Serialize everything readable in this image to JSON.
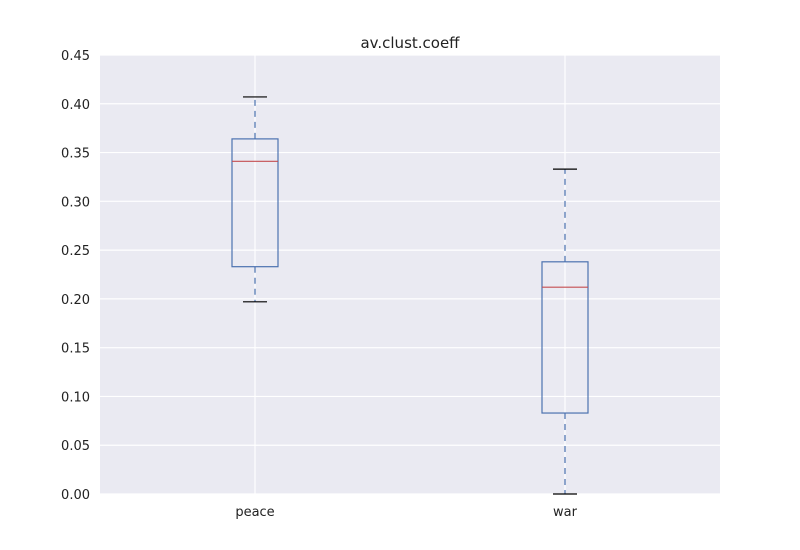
{
  "chart_data": {
    "type": "box",
    "title": "av.clust.coeff",
    "xlabel": "",
    "ylabel": "",
    "categories": [
      "peace",
      "war"
    ],
    "boxes": [
      {
        "category": "peace",
        "whisker_low": 0.197,
        "q1": 0.233,
        "median": 0.341,
        "q3": 0.364,
        "whisker_high": 0.407
      },
      {
        "category": "war",
        "whisker_low": 0.0,
        "q1": 0.083,
        "median": 0.212,
        "q3": 0.238,
        "whisker_high": 0.333
      }
    ],
    "ylim": [
      0.0,
      0.45
    ],
    "yticks": [
      "0.00",
      "0.05",
      "0.10",
      "0.15",
      "0.20",
      "0.25",
      "0.30",
      "0.35",
      "0.40",
      "0.45"
    ],
    "grid": true,
    "colors": {
      "background": "#EAEAF2",
      "grid": "#FFFFFF",
      "box": "#4C72B0",
      "median": "#C44E52",
      "cap": "#000000"
    }
  }
}
